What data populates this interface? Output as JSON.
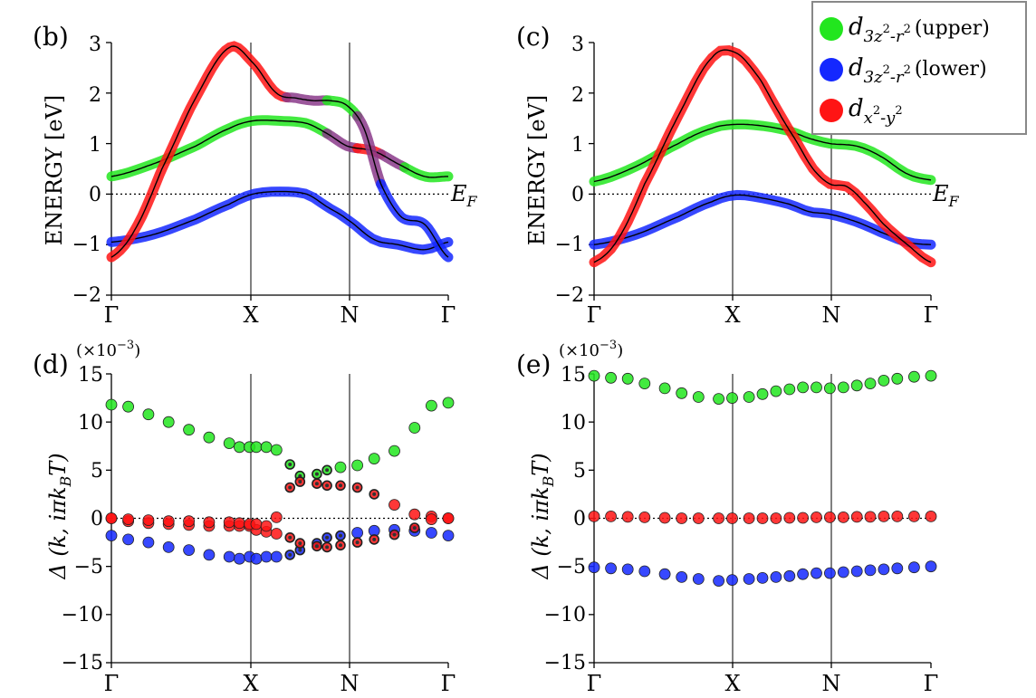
{
  "colors": {
    "upper": "#22e61e",
    "lower": "#1428ff",
    "dx2": "#ff1414"
  },
  "legend": {
    "items": [
      {
        "key": "upper",
        "symbol": "d",
        "sub_a": "3z",
        "sup_a": "2",
        "dash": "-r",
        "sup_b": "2",
        "tail": "(upper)"
      },
      {
        "key": "lower",
        "symbol": "d",
        "sub_a": "3z",
        "sup_a": "2",
        "dash": "-r",
        "sup_b": "2",
        "tail": "(lower)"
      },
      {
        "key": "dx2",
        "symbol": "d",
        "sub_a": "x",
        "sup_a": "2",
        "dash": "-y",
        "sup_b": "2",
        "tail": ""
      }
    ]
  },
  "chart_data": [
    {
      "id": "b",
      "type": "line",
      "panel_label": "(b)",
      "ylabel": "ENERGY [eV]",
      "ylim": [
        -2,
        3
      ],
      "yticks": [
        "3",
        "2",
        "1",
        "0",
        "−1",
        "−2"
      ],
      "xticks": [
        "Γ",
        "X",
        "N",
        "Γ"
      ],
      "fermi_label_main": "E",
      "fermi_label_sub": "F",
      "series": [
        {
          "name": "d3z2-r2 (upper)",
          "type": "band",
          "x": [
            0,
            0.125,
            0.25,
            0.35,
            0.42,
            0.5,
            0.58,
            0.64,
            0.7,
            0.78,
            0.85,
            0.93,
            1
          ],
          "y": [
            0.35,
            0.6,
            0.95,
            1.3,
            1.45,
            1.45,
            1.4,
            1.2,
            0.95,
            0.85,
            0.6,
            0.35,
            0.35
          ],
          "segments": [
            [
              "upper",
              0,
              0.64
            ],
            [
              "mix",
              0.64,
              0.73
            ],
            [
              "dx2",
              0.73,
              0.8
            ],
            [
              "mix",
              0.8,
              0.87
            ],
            [
              "upper",
              0.87,
              1
            ]
          ]
        },
        {
          "name": "d3z2-r2 (lower)",
          "type": "band",
          "x": [
            0,
            0.125,
            0.25,
            0.35,
            0.42,
            0.5,
            0.58,
            0.64,
            0.7,
            0.78,
            0.85,
            0.93,
            1
          ],
          "y": [
            -0.95,
            -0.8,
            -0.5,
            -0.2,
            0.0,
            0.05,
            0.0,
            -0.25,
            -0.5,
            -0.9,
            -1.0,
            -1.1,
            -0.95
          ],
          "segments": [
            [
              "lower",
              0,
              1
            ]
          ]
        },
        {
          "name": "dx2-y2",
          "type": "band",
          "x": [
            0,
            0.07,
            0.15,
            0.25,
            0.35,
            0.42,
            0.49,
            0.55,
            0.6,
            0.65,
            0.7,
            0.75,
            0.8,
            0.86,
            0.93,
            1
          ],
          "y": [
            -1.25,
            -0.7,
            0.5,
            1.9,
            2.9,
            2.6,
            2.0,
            1.9,
            1.85,
            1.85,
            1.75,
            1.3,
            0.2,
            -0.45,
            -0.6,
            -1.25
          ],
          "segments": [
            [
              "dx2",
              0,
              0.52
            ],
            [
              "mix",
              0.52,
              0.64
            ],
            [
              "upper",
              0.64,
              0.73
            ],
            [
              "mix",
              0.73,
              0.8
            ],
            [
              "lower",
              0.8,
              1
            ]
          ]
        }
      ]
    },
    {
      "id": "c",
      "type": "line",
      "panel_label": "(c)",
      "ylabel": "ENERGY [eV]",
      "ylim": [
        -2,
        3
      ],
      "yticks": [
        "3",
        "2",
        "1",
        "0",
        "−1",
        "−2"
      ],
      "xticks": [
        "Γ",
        "X",
        "N",
        "Γ"
      ],
      "fermi_label_main": "E",
      "fermi_label_sub": "F",
      "series": [
        {
          "name": "d3z2-r2 (upper)",
          "type": "band",
          "x": [
            0,
            0.125,
            0.25,
            0.35,
            0.42,
            0.5,
            0.58,
            0.64,
            0.7,
            0.78,
            0.85,
            0.93,
            1
          ],
          "y": [
            0.25,
            0.55,
            1.0,
            1.3,
            1.38,
            1.35,
            1.25,
            1.1,
            1.0,
            0.95,
            0.75,
            0.4,
            0.28
          ],
          "segments": [
            [
              "upper",
              0,
              1
            ]
          ]
        },
        {
          "name": "d3z2-r2 (lower)",
          "type": "band",
          "x": [
            0,
            0.125,
            0.25,
            0.35,
            0.42,
            0.5,
            0.58,
            0.64,
            0.7,
            0.78,
            0.85,
            0.93,
            1
          ],
          "y": [
            -1.0,
            -0.8,
            -0.45,
            -0.15,
            -0.02,
            -0.08,
            -0.2,
            -0.35,
            -0.4,
            -0.55,
            -0.75,
            -0.95,
            -1.0
          ],
          "segments": [
            [
              "lower",
              0,
              1
            ]
          ]
        },
        {
          "name": "dx2-y2",
          "type": "band",
          "x": [
            0,
            0.07,
            0.15,
            0.25,
            0.35,
            0.42,
            0.49,
            0.55,
            0.6,
            0.65,
            0.7,
            0.75,
            0.8,
            0.86,
            0.93,
            1
          ],
          "y": [
            -1.35,
            -0.9,
            0.2,
            1.55,
            2.7,
            2.8,
            2.3,
            1.6,
            1.05,
            0.5,
            0.2,
            0.15,
            -0.15,
            -0.6,
            -1.0,
            -1.35
          ],
          "segments": [
            [
              "dx2",
              0,
              1
            ]
          ]
        }
      ]
    },
    {
      "id": "d",
      "type": "scatter",
      "panel_label": "(d)",
      "multiplier": "(×10",
      "multiplier_exp": "−3",
      "multiplier_close": ")",
      "ylabel": "Δ (k, iπk",
      "ylabel_sub": "B",
      "ylabel_tail": "T)",
      "ylim": [
        -15,
        15
      ],
      "yticks": [
        "15",
        "10",
        "5",
        "0",
        "−5",
        "−10",
        "−15"
      ],
      "xticks": [
        "Γ",
        "X",
        "N",
        "Γ"
      ],
      "series": [
        {
          "name": "upper",
          "color": "upper",
          "x": [
            0,
            0.05,
            0.11,
            0.17,
            0.23,
            0.29,
            0.35,
            0.38,
            0.41,
            0.43,
            0.46,
            0.49,
            0.53,
            0.56,
            0.61,
            0.64,
            0.68,
            0.73,
            0.78,
            0.84,
            0.9,
            0.95,
            1
          ],
          "y": [
            11.8,
            11.6,
            10.8,
            10.0,
            9.2,
            8.4,
            7.8,
            7.4,
            7.4,
            7.4,
            7.4,
            7.1,
            5.6,
            4.4,
            4.6,
            5.0,
            5.3,
            5.5,
            6.2,
            7.0,
            9.4,
            11.7,
            12.0
          ],
          "mixed_from": 0.52,
          "mixed_to": 0.66
        },
        {
          "name": "lower",
          "color": "lower",
          "x": [
            0,
            0.05,
            0.11,
            0.17,
            0.23,
            0.29,
            0.35,
            0.38,
            0.41,
            0.43,
            0.46,
            0.49,
            0.53,
            0.56,
            0.61,
            0.64,
            0.68,
            0.73,
            0.78,
            0.84,
            0.9,
            0.95,
            1
          ],
          "y": [
            -1.8,
            -2.2,
            -2.5,
            -3.0,
            -3.3,
            -3.8,
            -4.0,
            -4.2,
            -4.0,
            -4.2,
            -4.0,
            -4.0,
            -3.8,
            -3.3,
            -2.6,
            -2.0,
            -1.8,
            -1.5,
            -1.3,
            -1.2,
            -1.3,
            -1.5,
            -1.8
          ],
          "mixed_from": 0.5,
          "mixed_to": 0.68
        },
        {
          "name": "dx2-y2",
          "color": "dx2",
          "x": [
            0,
            0.05,
            0.11,
            0.17,
            0.23,
            0.29,
            0.35,
            0.38,
            0.41,
            0.43,
            0.46,
            0.49,
            0.53,
            0.56,
            0.61,
            0.64,
            0.68,
            0.73,
            0.78,
            0.84,
            0.9,
            0.95,
            1
          ],
          "y": [
            0.0,
            -0.3,
            -0.5,
            -0.6,
            -0.7,
            -0.8,
            -0.8,
            -0.8,
            -0.8,
            -1.2,
            -1.4,
            -1.6,
            -2.0,
            -2.6,
            -2.9,
            -3.0,
            -2.8,
            -2.5,
            -2.2,
            -1.7,
            -1.0,
            0.2,
            0.0
          ],
          "mixed_from": 0.5,
          "mixed_to": 0.92
        },
        {
          "name": "dx2-y2 (branch)",
          "color": "dx2",
          "x": [
            0,
            0.05,
            0.11,
            0.17,
            0.23,
            0.29,
            0.35,
            0.38,
            0.41,
            0.43,
            0.46,
            0.49,
            0.53,
            0.56,
            0.61,
            0.64,
            0.68,
            0.73,
            0.78,
            0.84,
            0.9,
            0.95,
            1
          ],
          "y": [
            0.0,
            -0.1,
            -0.2,
            -0.3,
            -0.3,
            -0.4,
            -0.4,
            -0.5,
            -0.6,
            -0.6,
            -0.8,
            0.1,
            3.2,
            3.8,
            3.6,
            3.4,
            3.4,
            3.2,
            2.5,
            1.4,
            0.4,
            -0.1,
            0.0
          ],
          "mixed_from": 0.52,
          "mixed_to": 0.8
        }
      ]
    },
    {
      "id": "e",
      "type": "scatter",
      "panel_label": "(e)",
      "multiplier": "(×10",
      "multiplier_exp": "−3",
      "multiplier_close": ")",
      "ylabel": "Δ (k, iπk",
      "ylabel_sub": "B",
      "ylabel_tail": "T)",
      "ylim": [
        -15,
        15
      ],
      "yticks": [
        "15",
        "10",
        "5",
        "0",
        "−5",
        "−10",
        "−15"
      ],
      "xticks": [
        "Γ",
        "X",
        "N",
        "Γ"
      ],
      "series": [
        {
          "name": "upper",
          "color": "upper",
          "x": [
            0,
            0.05,
            0.1,
            0.15,
            0.21,
            0.26,
            0.31,
            0.37,
            0.41,
            0.46,
            0.5,
            0.54,
            0.58,
            0.62,
            0.66,
            0.7,
            0.74,
            0.78,
            0.82,
            0.86,
            0.9,
            0.95,
            1
          ],
          "y": [
            14.8,
            14.6,
            14.5,
            14.0,
            13.5,
            13.0,
            12.6,
            12.4,
            12.5,
            12.6,
            12.9,
            13.2,
            13.4,
            13.6,
            13.6,
            13.5,
            13.6,
            13.8,
            14.0,
            14.3,
            14.5,
            14.7,
            14.8
          ]
        },
        {
          "name": "lower",
          "color": "lower",
          "x": [
            0,
            0.05,
            0.1,
            0.15,
            0.21,
            0.26,
            0.31,
            0.37,
            0.41,
            0.46,
            0.5,
            0.54,
            0.58,
            0.62,
            0.66,
            0.7,
            0.74,
            0.78,
            0.82,
            0.86,
            0.9,
            0.95,
            1
          ],
          "y": [
            -5.1,
            -5.2,
            -5.3,
            -5.5,
            -5.8,
            -6.1,
            -6.3,
            -6.5,
            -6.4,
            -6.3,
            -6.2,
            -6.1,
            -6.0,
            -5.8,
            -5.7,
            -5.7,
            -5.6,
            -5.5,
            -5.4,
            -5.3,
            -5.2,
            -5.1,
            -5.0
          ]
        },
        {
          "name": "dx2-y2",
          "color": "dx2",
          "x": [
            0,
            0.05,
            0.1,
            0.15,
            0.21,
            0.26,
            0.31,
            0.37,
            0.41,
            0.46,
            0.5,
            0.54,
            0.58,
            0.62,
            0.66,
            0.7,
            0.74,
            0.78,
            0.82,
            0.86,
            0.9,
            0.95,
            1
          ],
          "y": [
            0.2,
            0.2,
            0.15,
            0.1,
            0.05,
            0.0,
            0.0,
            0.0,
            0.0,
            0.0,
            0.0,
            0.0,
            0.05,
            0.05,
            0.1,
            0.1,
            0.1,
            0.15,
            0.15,
            0.2,
            0.2,
            0.2,
            0.2
          ]
        }
      ]
    }
  ]
}
